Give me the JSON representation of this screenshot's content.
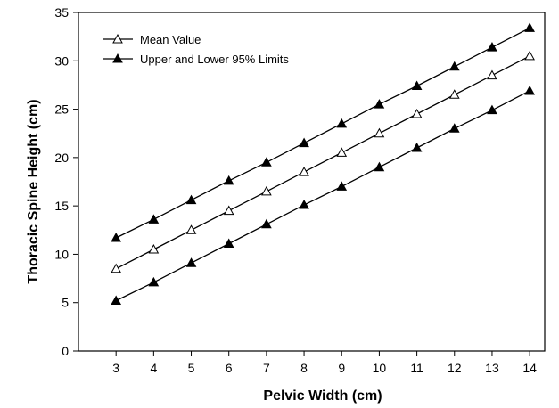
{
  "chart_data": {
    "type": "line",
    "xlabel": "Pelvic Width (cm)",
    "ylabel": "Thoracic Spine Height (cm)",
    "xlim": [
      2,
      14.4
    ],
    "ylim": [
      0,
      35
    ],
    "x": [
      3,
      4,
      5,
      6,
      7,
      8,
      9,
      10,
      11,
      12,
      13,
      14
    ],
    "x_ticks": [
      "3",
      "4",
      "5",
      "6",
      "7",
      "8",
      "9",
      "10",
      "11",
      "12",
      "13",
      "14"
    ],
    "y_ticks": [
      "0",
      "5",
      "10",
      "15",
      "20",
      "25",
      "30",
      "35"
    ],
    "grid": false,
    "legend_position": "top-left",
    "legend": [
      {
        "label": "Mean Value",
        "marker": "open-triangle"
      },
      {
        "label": "Upper and Lower 95% Limits",
        "marker": "filled-triangle"
      }
    ],
    "series": [
      {
        "name": "Upper 95% Limit",
        "marker": "filled-triangle",
        "values": [
          11.7,
          13.6,
          15.6,
          17.6,
          19.5,
          21.5,
          23.5,
          25.5,
          27.4,
          29.4,
          31.4,
          33.4
        ]
      },
      {
        "name": "Mean Value",
        "marker": "open-triangle",
        "values": [
          8.5,
          10.5,
          12.5,
          14.5,
          16.5,
          18.5,
          20.5,
          22.5,
          24.5,
          26.5,
          28.5,
          30.5
        ]
      },
      {
        "name": "Lower 95% Limit",
        "marker": "filled-triangle",
        "values": [
          5.2,
          7.1,
          9.1,
          11.1,
          13.1,
          15.1,
          17.0,
          19.0,
          21.0,
          23.0,
          24.9,
          26.9
        ]
      }
    ]
  }
}
